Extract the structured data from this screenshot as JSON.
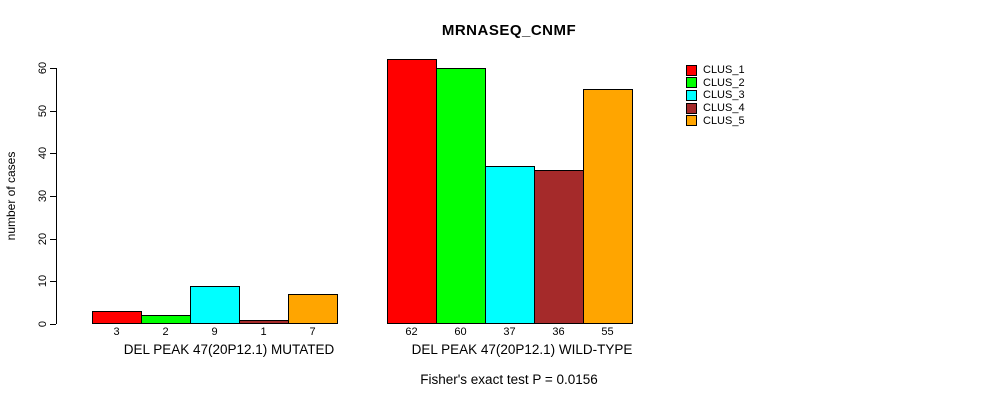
{
  "page": {
    "background_color": "#FFFFFF",
    "text_color": "#000000"
  },
  "chart_data": {
    "type": "bar",
    "title": "MRNASEQ_CNMF",
    "ylabel": "number of cases",
    "xlabel": "",
    "ylim": [
      0,
      60
    ],
    "yticks": [
      0,
      10,
      20,
      30,
      40,
      50,
      60
    ],
    "grid": false,
    "legend_position": "right",
    "bar_outline_color": "#000000",
    "series": [
      "CLUS_1",
      "CLUS_2",
      "CLUS_3",
      "CLUS_4",
      "CLUS_5"
    ],
    "series_colors": [
      "#FF0000",
      "#00FF00",
      "#00FFFF",
      "#A52A2A",
      "#FFA500"
    ],
    "groups": [
      {
        "label": "DEL PEAK 47(20P12.1) MUTATED",
        "values": [
          3,
          2,
          9,
          1,
          7
        ]
      },
      {
        "label": "DEL PEAK 47(20P12.1) WILD-TYPE",
        "values": [
          62,
          60,
          37,
          36,
          55
        ]
      }
    ],
    "annotation": "Fisher's exact test P = 0.0156"
  }
}
